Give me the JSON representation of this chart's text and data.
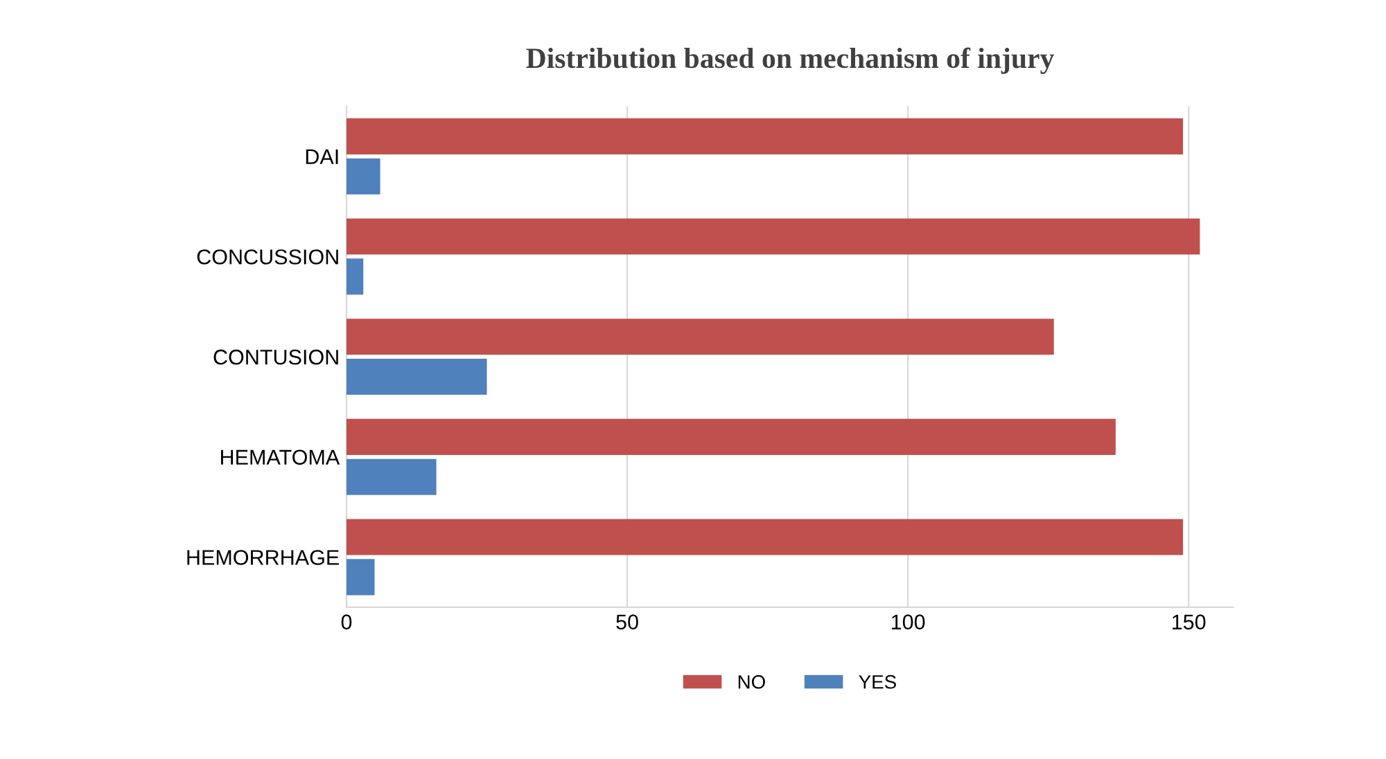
{
  "chart_data": {
    "type": "bar",
    "orientation": "horizontal",
    "title": "Distribution based on mechanism of injury",
    "categories": [
      "DAI",
      "CONCUSSION",
      "CONTUSION",
      "HEMATOMA",
      "HEMORRHAGE"
    ],
    "series": [
      {
        "name": "NO",
        "color": "#c0504d",
        "values": [
          149,
          152,
          126,
          137,
          149
        ]
      },
      {
        "name": "YES",
        "color": "#4f81bd",
        "values": [
          6,
          3,
          25,
          16,
          5
        ]
      }
    ],
    "xlim": [
      0,
      158
    ],
    "xticks": [
      0,
      50,
      100,
      150
    ],
    "grid": "x",
    "legend": "bottom"
  }
}
